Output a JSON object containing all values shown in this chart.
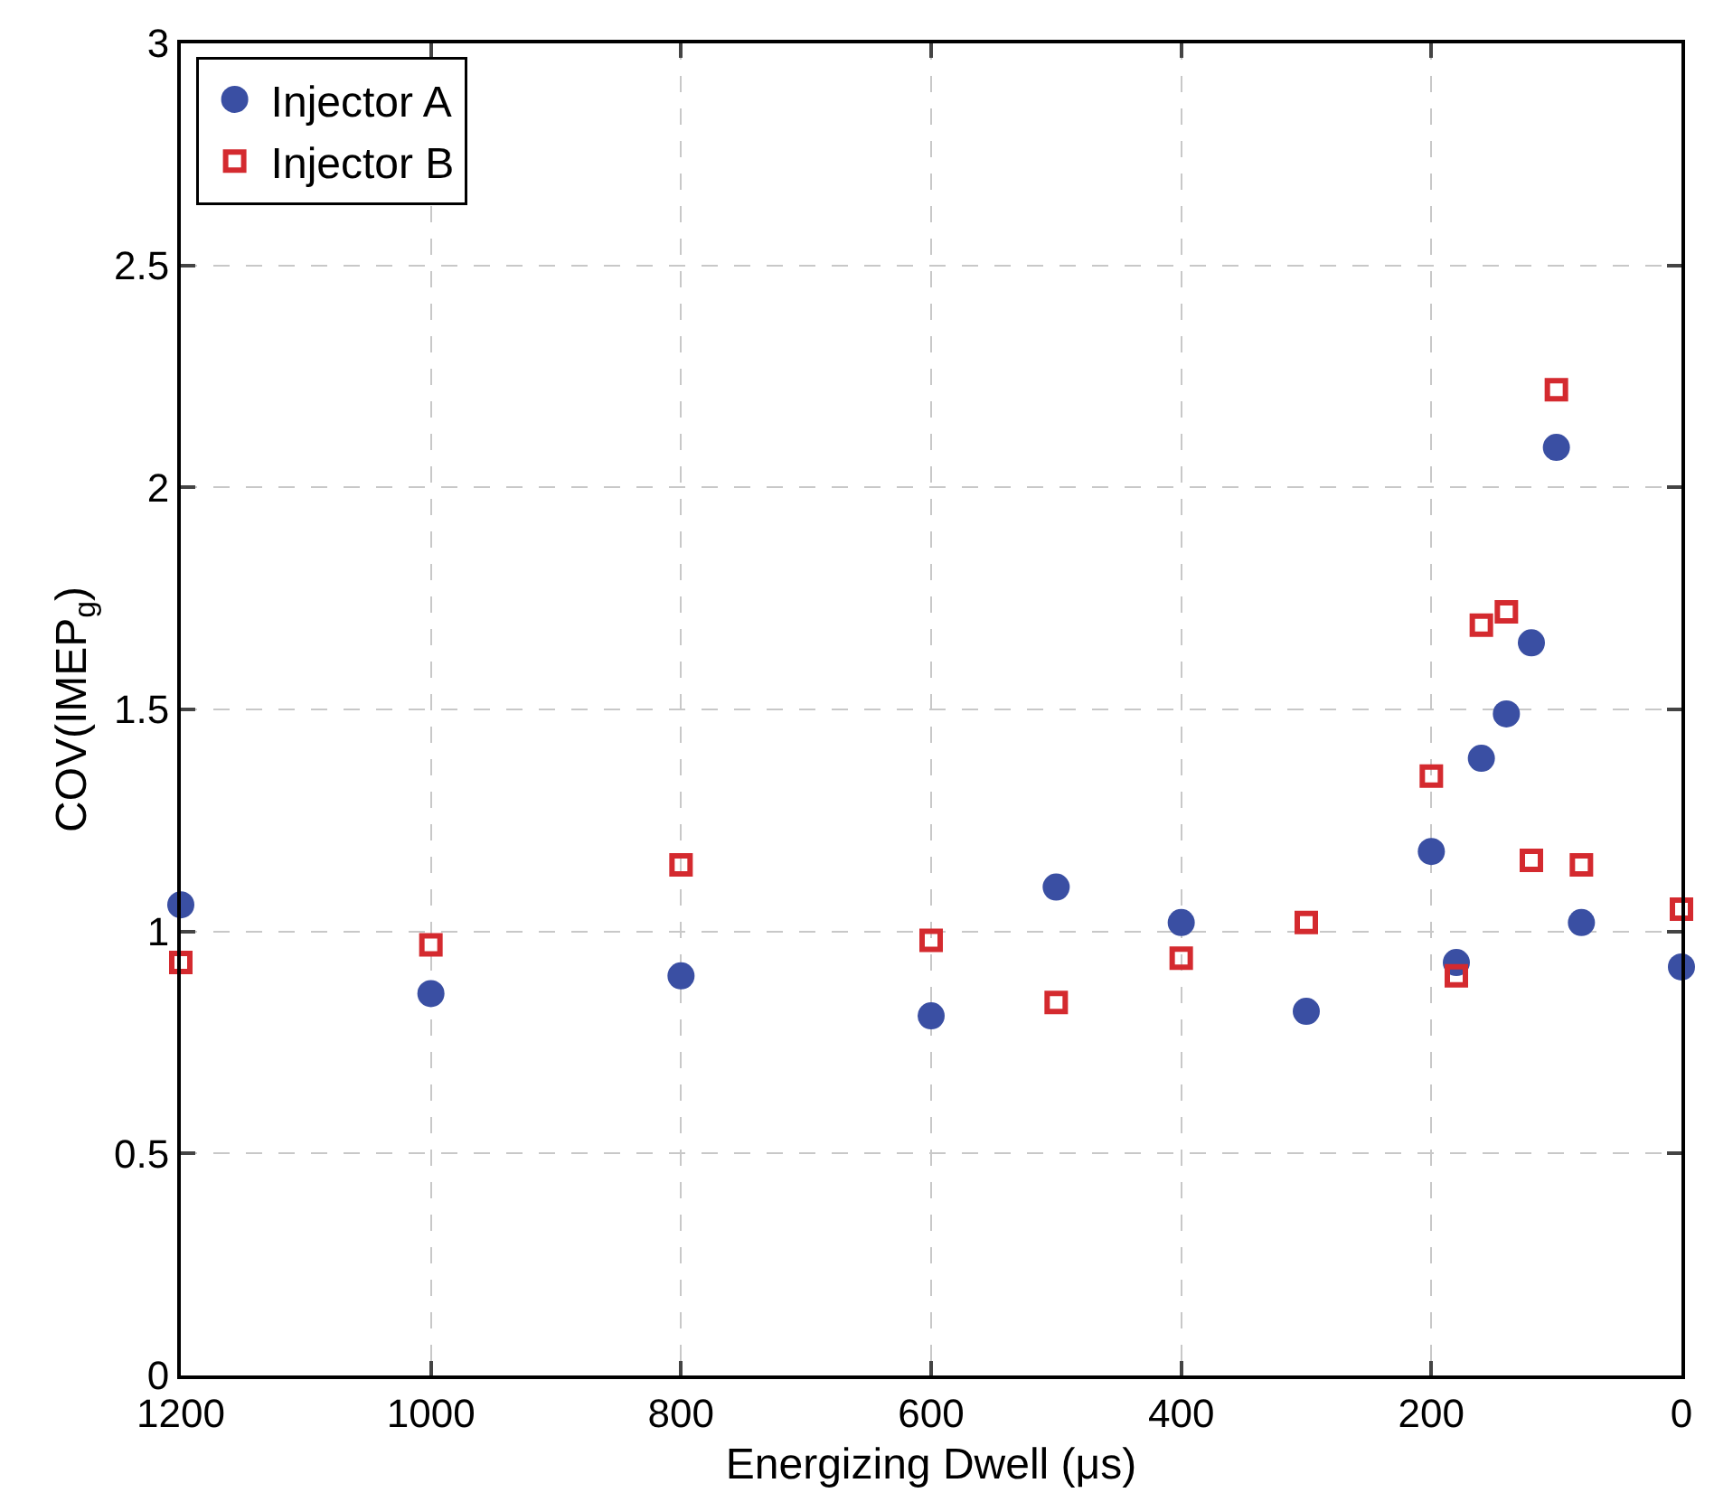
{
  "chart_data": {
    "type": "scatter",
    "xlabel": "Energizing Dwell (μs)",
    "ylabel": "COV(IMEP$_{g}$)",
    "xlim": [
      1200,
      0
    ],
    "xticks": [
      1200,
      1000,
      800,
      600,
      400,
      200,
      0
    ],
    "ylim": [
      0,
      3
    ],
    "yticks": [
      0,
      0.5,
      1,
      1.5,
      2,
      2.5,
      3
    ],
    "grid": true,
    "legend": "top left",
    "series": [
      {
        "name": "Injector A",
        "color": "#3a4fa3",
        "marker": "circle",
        "x": [
          1200,
          1000,
          800,
          600,
          500,
          400,
          300,
          200,
          180,
          160,
          140,
          120,
          100,
          80,
          0
        ],
        "values": [
          1.06,
          0.86,
          0.9,
          0.81,
          1.1,
          1.02,
          0.82,
          1.18,
          0.93,
          1.39,
          1.49,
          1.65,
          2.09,
          1.02,
          0.92
        ]
      },
      {
        "name": "Injector B",
        "color": "#d42a2f",
        "marker": "square",
        "x": [
          1200,
          1000,
          800,
          600,
          500,
          400,
          300,
          200,
          180,
          160,
          140,
          120,
          100,
          80,
          0
        ],
        "values": [
          0.93,
          0.97,
          1.15,
          0.98,
          0.84,
          0.94,
          1.02,
          1.35,
          0.9,
          1.69,
          1.72,
          1.16,
          2.22,
          1.15,
          1.05
        ]
      }
    ]
  }
}
